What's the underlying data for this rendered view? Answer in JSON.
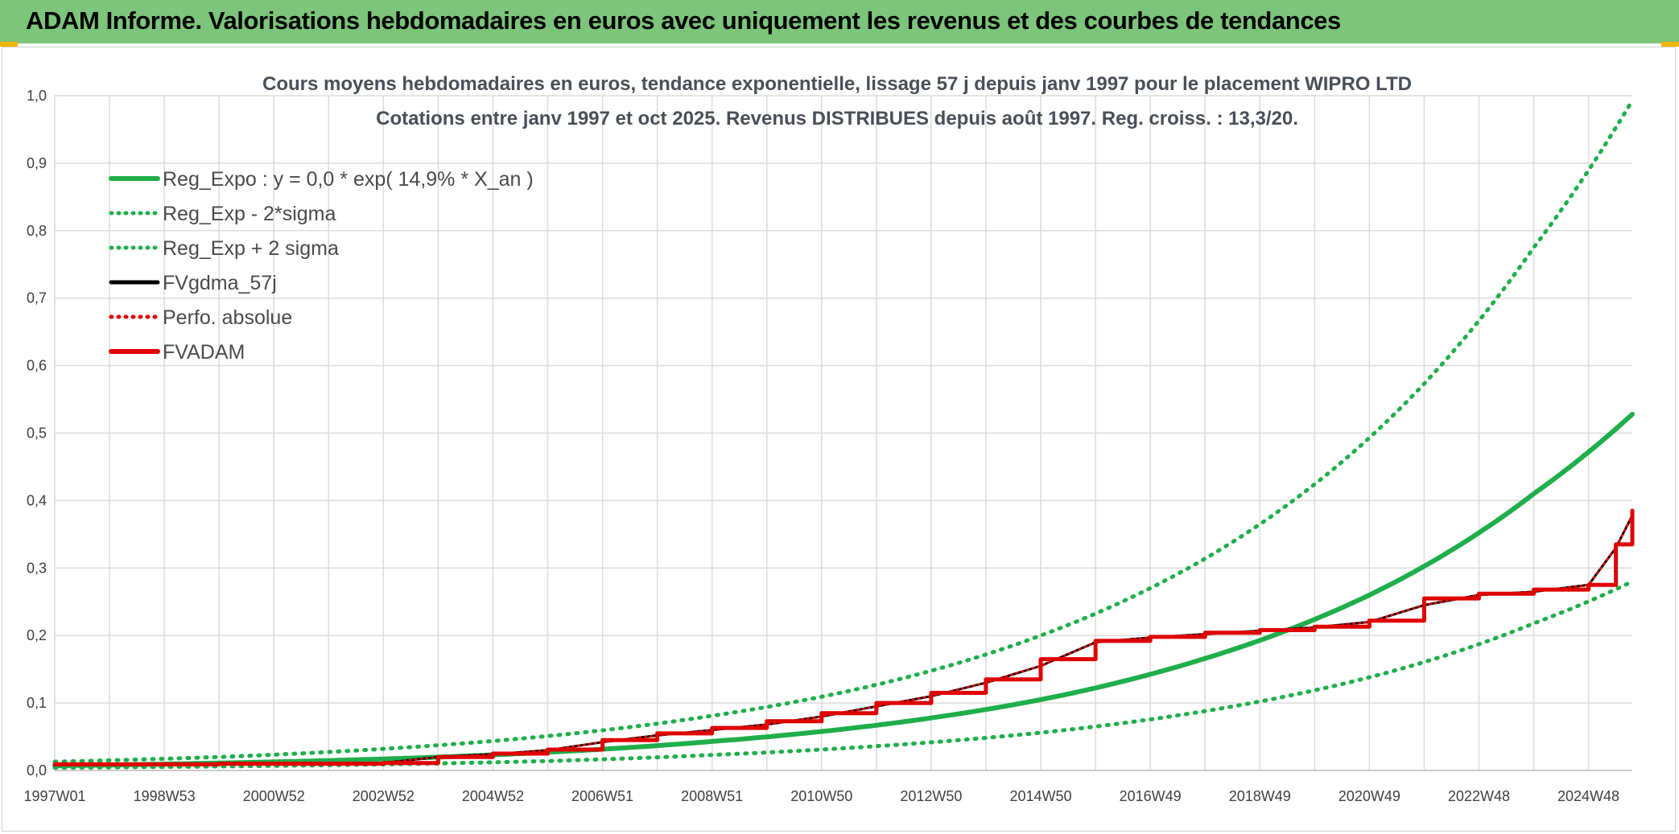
{
  "header": {
    "title": "ADAM Informe. Valorisations hebdomadaires en euros avec uniquement les revenus et des courbes de tendances",
    "accent_color": "#7cc57a"
  },
  "chart_data": {
    "type": "line",
    "title_line1": "Cours moyens hebdomadaires en euros, tendance exponentielle, lissage 57 j depuis janv 1997 pour le placement WIPRO LTD",
    "title_line2": "Cotations entre janv 1997 et oct 2025. Revenus DISTRIBUES depuis août 1997. Reg. croiss. : 13,3/20.",
    "xlabel": "",
    "ylabel": "",
    "ylim": [
      0,
      1.0
    ],
    "xlim": [
      1997.0,
      2025.8
    ],
    "y_ticks": [
      "0,0",
      "0,1",
      "0,2",
      "0,3",
      "0,4",
      "0,5",
      "0,6",
      "0,7",
      "0,8",
      "0,9",
      "1,0"
    ],
    "x_ticks": [
      {
        "label": "1997W01",
        "x": 1997.0
      },
      {
        "label": "1998W53",
        "x": 1999.0
      },
      {
        "label": "2000W52",
        "x": 2001.0
      },
      {
        "label": "2002W52",
        "x": 2003.0
      },
      {
        "label": "2004W52",
        "x": 2005.0
      },
      {
        "label": "2006W51",
        "x": 2007.0
      },
      {
        "label": "2008W51",
        "x": 2009.0
      },
      {
        "label": "2010W50",
        "x": 2011.0
      },
      {
        "label": "2012W50",
        "x": 2013.0
      },
      {
        "label": "2014W50",
        "x": 2015.0
      },
      {
        "label": "2016W49",
        "x": 2017.0
      },
      {
        "label": "2018W49",
        "x": 2019.0
      },
      {
        "label": "2020W49",
        "x": 2021.0
      },
      {
        "label": "2022W48",
        "x": 2023.0
      },
      {
        "label": "2024W48",
        "x": 2025.0
      }
    ],
    "grid": true,
    "legend": [
      {
        "name": "Reg_Expo : y = 0,0 * exp( 14,9% *  X_an )",
        "color": "#1fae4b",
        "style": "solid"
      },
      {
        "name": "Reg_Exp - 2*sigma",
        "color": "#1fae4b",
        "style": "dotted"
      },
      {
        "name": "Reg_Exp + 2 sigma",
        "color": "#1fae4b",
        "style": "dotted"
      },
      {
        "name": "FVgdma_57j",
        "color": "#000000",
        "style": "solid"
      },
      {
        "name": "Perfo. absolue",
        "color": "#e00000",
        "style": "dotted"
      },
      {
        "name": "FVADAM",
        "color": "#e00000",
        "style": "solid"
      }
    ],
    "series": [
      {
        "name": "Reg_Expo",
        "x": [
          1997.0,
          2000.0,
          2003.0,
          2006.0,
          2009.0,
          2012.0,
          2015.0,
          2018.0,
          2021.0,
          2024.0,
          2025.8
        ],
        "values": [
          0.007,
          0.011,
          0.017,
          0.027,
          0.043,
          0.067,
          0.105,
          0.166,
          0.26,
          0.41,
          0.528
        ]
      },
      {
        "name": "Reg_Exp - 2*sigma",
        "x": [
          1997.0,
          2000.0,
          2003.0,
          2006.0,
          2009.0,
          2012.0,
          2015.0,
          2018.0,
          2021.0,
          2024.0,
          2025.8
        ],
        "values": [
          0.004,
          0.006,
          0.009,
          0.014,
          0.023,
          0.036,
          0.056,
          0.088,
          0.138,
          0.218,
          0.28
        ]
      },
      {
        "name": "Reg_Exp + 2 sigma",
        "x": [
          1997.0,
          2000.0,
          2003.0,
          2006.0,
          2009.0,
          2012.0,
          2015.0,
          2018.0,
          2021.0,
          2024.0,
          2025.8
        ],
        "values": [
          0.013,
          0.02,
          0.032,
          0.051,
          0.081,
          0.127,
          0.2,
          0.314,
          0.493,
          0.775,
          0.993
        ]
      },
      {
        "name": "FVgdma_57j",
        "x": [
          1997.0,
          2000.0,
          2003.0,
          2004.0,
          2005.0,
          2006.0,
          2007.0,
          2008.0,
          2009.0,
          2010.0,
          2011.0,
          2012.0,
          2013.0,
          2014.0,
          2015.0,
          2016.0,
          2017.0,
          2018.0,
          2019.0,
          2020.0,
          2021.0,
          2022.0,
          2023.0,
          2024.0,
          2025.0,
          2025.5,
          2025.8
        ],
        "values": [
          0.008,
          0.01,
          0.011,
          0.02,
          0.024,
          0.03,
          0.042,
          0.052,
          0.06,
          0.068,
          0.08,
          0.095,
          0.11,
          0.13,
          0.155,
          0.19,
          0.197,
          0.202,
          0.207,
          0.212,
          0.22,
          0.245,
          0.26,
          0.265,
          0.275,
          0.33,
          0.378
        ]
      },
      {
        "name": "Perfo. absolue",
        "x": [
          1997.0,
          2000.0,
          2003.0,
          2004.0,
          2005.0,
          2006.0,
          2007.0,
          2008.0,
          2009.0,
          2010.0,
          2011.0,
          2012.0,
          2013.0,
          2014.0,
          2015.0,
          2016.0,
          2017.0,
          2018.0,
          2019.0,
          2020.0,
          2021.0,
          2022.0,
          2023.0,
          2024.0,
          2025.0,
          2025.5,
          2025.8
        ],
        "values": [
          0.008,
          0.01,
          0.011,
          0.02,
          0.024,
          0.03,
          0.042,
          0.052,
          0.06,
          0.068,
          0.08,
          0.095,
          0.11,
          0.13,
          0.155,
          0.19,
          0.197,
          0.202,
          0.207,
          0.212,
          0.22,
          0.245,
          0.26,
          0.265,
          0.275,
          0.33,
          0.378
        ]
      },
      {
        "name": "FVADAM",
        "x": [
          1997.0,
          2000.0,
          2003.0,
          2004.0,
          2005.0,
          2006.0,
          2007.0,
          2008.0,
          2009.0,
          2010.0,
          2011.0,
          2012.0,
          2013.0,
          2014.0,
          2015.0,
          2016.0,
          2017.0,
          2018.0,
          2019.0,
          2020.0,
          2021.0,
          2022.0,
          2023.0,
          2024.0,
          2025.0,
          2025.5,
          2025.8
        ],
        "values": [
          0.009,
          0.01,
          0.011,
          0.02,
          0.025,
          0.031,
          0.045,
          0.055,
          0.063,
          0.073,
          0.085,
          0.1,
          0.115,
          0.135,
          0.165,
          0.192,
          0.198,
          0.204,
          0.208,
          0.213,
          0.222,
          0.255,
          0.262,
          0.268,
          0.275,
          0.335,
          0.385
        ]
      }
    ]
  }
}
